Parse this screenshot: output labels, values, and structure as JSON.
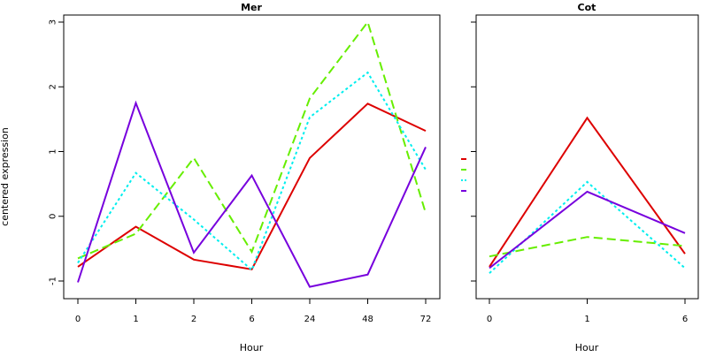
{
  "ylabel": "centered expression",
  "colors": {
    "s1": "#dd0000",
    "s2": "#66ee00",
    "s3": "#00eeee",
    "s4": "#7700dd"
  },
  "chart_data": [
    {
      "type": "line",
      "title": "Mer",
      "xlabel": "Hour",
      "ylabel": "centered expression",
      "categories": [
        "0",
        "1",
        "2",
        "6",
        "24",
        "48",
        "72"
      ],
      "ylim": [
        -1.1,
        3.05
      ],
      "yticks": [
        "-1",
        "0",
        "1",
        "2",
        "3"
      ],
      "grid": false,
      "series": [
        {
          "color": "#dd0000",
          "dash": "solid",
          "values": [
            -0.78,
            -0.16,
            -0.67,
            -0.82,
            0.9,
            1.74,
            1.32
          ]
        },
        {
          "color": "#66ee00",
          "dash": "dashed",
          "values": [
            -0.65,
            -0.27,
            0.9,
            -0.55,
            1.82,
            3.0,
            0.05
          ]
        },
        {
          "color": "#00eeee",
          "dash": "dotted",
          "values": [
            -0.72,
            0.67,
            -0.05,
            -0.83,
            1.53,
            2.22,
            0.72
          ]
        },
        {
          "color": "#7700dd",
          "dash": "solid",
          "values": [
            -1.02,
            1.75,
            -0.56,
            0.63,
            -1.09,
            -0.9,
            1.07
          ]
        }
      ]
    },
    {
      "type": "line",
      "title": "Cot",
      "xlabel": "Hour",
      "categories": [
        "0",
        "1",
        "6"
      ],
      "ylim": [
        -1.1,
        3.05
      ],
      "grid": false,
      "series": [
        {
          "color": "#dd0000",
          "dash": "solid",
          "values": [
            -0.78,
            1.52,
            -0.58
          ]
        },
        {
          "color": "#66ee00",
          "dash": "dashed",
          "values": [
            -0.62,
            -0.32,
            -0.46
          ]
        },
        {
          "color": "#00eeee",
          "dash": "dotted",
          "values": [
            -0.88,
            0.53,
            -0.8
          ]
        },
        {
          "color": "#7700dd",
          "dash": "solid",
          "values": [
            -0.8,
            0.38,
            -0.26
          ]
        }
      ]
    }
  ]
}
